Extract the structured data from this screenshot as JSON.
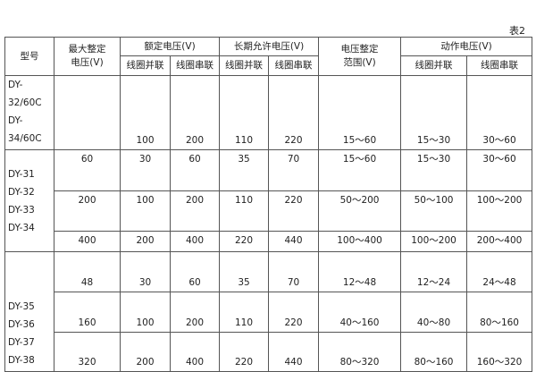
{
  "caption": "表2",
  "header": {
    "model": "型号",
    "max_setting_voltage": [
      "最大整定",
      "电压(V)"
    ],
    "rated_voltage": "额定电压(V)",
    "long_term_voltage": "长期允许电压(V)",
    "setting_range": [
      "电压整定",
      "范围(V)"
    ],
    "operating_voltage": "动作电压(V)",
    "coil_parallel": "线圈并联",
    "coil_series": "线圈串联"
  },
  "groups": [
    {
      "models": [
        "DY-32/60C",
        "DY-34/60C"
      ],
      "rows": [
        {
          "max": "",
          "rated_p": "100",
          "rated_s": "200",
          "long_p": "110",
          "long_s": "220",
          "range": "15～60",
          "op_p": "15～30",
          "op_s": "30～60"
        }
      ]
    },
    {
      "models": [
        "DY-31",
        "DY-32",
        "DY-33",
        "DY-34"
      ],
      "rows": [
        {
          "max": "60",
          "rated_p": "30",
          "rated_s": "60",
          "long_p": "35",
          "long_s": "70",
          "range": "15～60",
          "op_p": "15～30",
          "op_s": "30～60"
        },
        {
          "max": "200",
          "rated_p": "100",
          "rated_s": "200",
          "long_p": "110",
          "long_s": "220",
          "range": "50～200",
          "op_p": "50～100",
          "op_s": "100～200"
        },
        {
          "max": "400",
          "rated_p": "200",
          "rated_s": "400",
          "long_p": "220",
          "long_s": "440",
          "range": "100～400",
          "op_p": "100～200",
          "op_s": "200～400"
        }
      ]
    },
    {
      "models": [
        "DY-35",
        "DY-36",
        "DY-37",
        "DY-38"
      ],
      "rows": [
        {
          "max": "48",
          "rated_p": "30",
          "rated_s": "60",
          "long_p": "35",
          "long_s": "70",
          "range": "12～48",
          "op_p": "12～24",
          "op_s": "24～48"
        },
        {
          "max": "160",
          "rated_p": "100",
          "rated_s": "200",
          "long_p": "110",
          "long_s": "220",
          "range": "40～160",
          "op_p": "40～80",
          "op_s": "80～160"
        },
        {
          "max": "320",
          "rated_p": "200",
          "rated_s": "400",
          "long_p": "220",
          "long_s": "440",
          "range": "80～320",
          "op_p": "80～160",
          "op_s": "160～320"
        }
      ]
    }
  ]
}
